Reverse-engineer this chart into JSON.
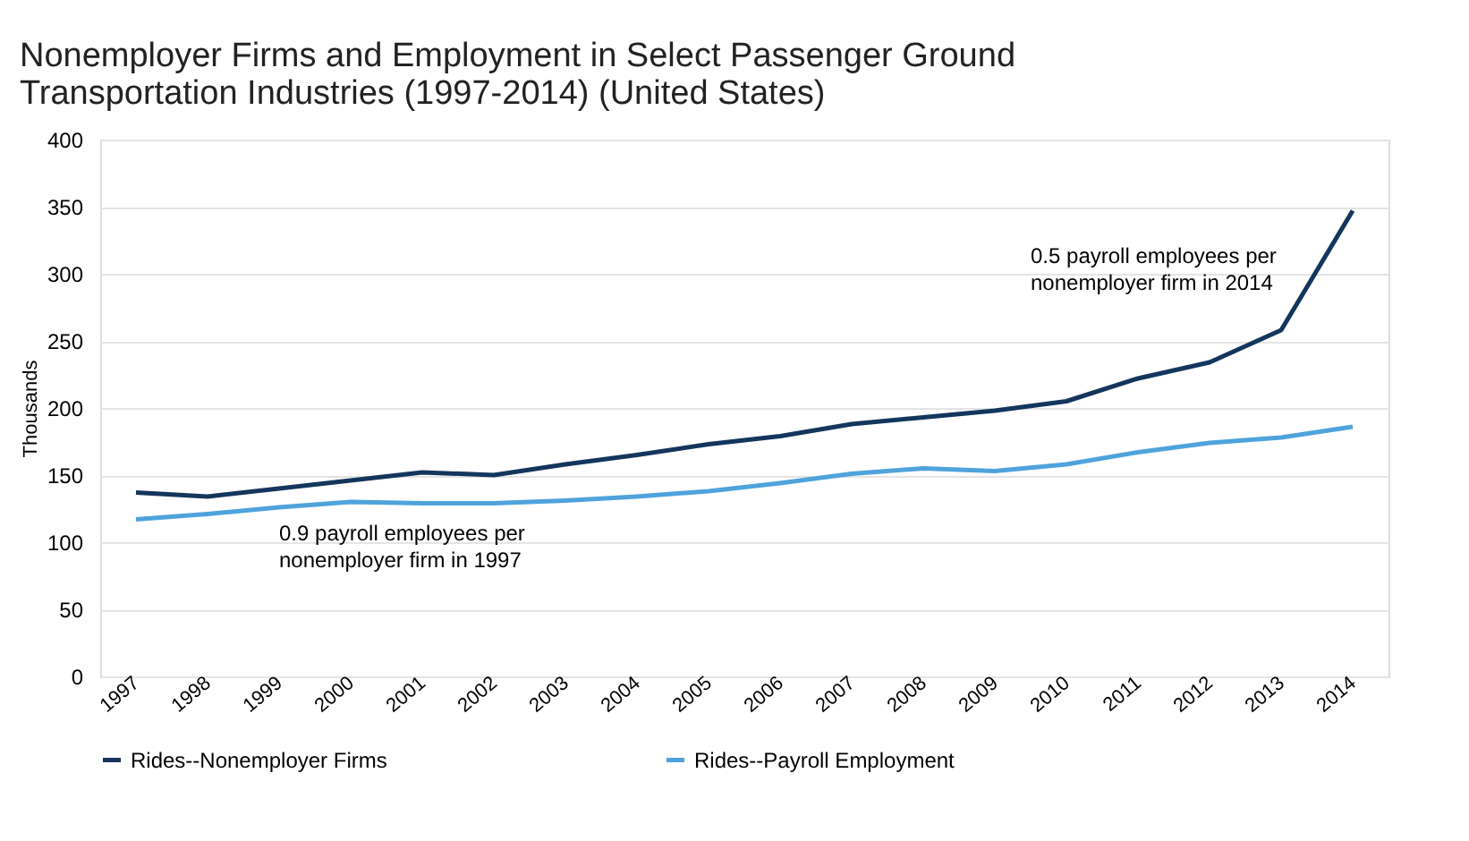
{
  "chart_data": {
    "type": "line",
    "title": "Nonemployer Firms and Employment in Select Passenger Ground Transportation Industries (1997-2014) (United States)",
    "ylabel": "Thousands",
    "categories": [
      "1997",
      "1998",
      "1999",
      "2000",
      "2001",
      "2002",
      "2003",
      "2004",
      "2005",
      "2006",
      "2007",
      "2008",
      "2009",
      "2010",
      "2011",
      "2012",
      "2013",
      "2014"
    ],
    "series": [
      {
        "name": "Rides--Nonemployer Firms",
        "color": "#14365d",
        "values": [
          137,
          134,
          140,
          146,
          152,
          150,
          158,
          165,
          173,
          179,
          188,
          193,
          198,
          205,
          222,
          234,
          258,
          347
        ]
      },
      {
        "name": "Rides--Payroll Employment",
        "color": "#4fa3dc",
        "values": [
          117,
          121,
          126,
          130,
          129,
          129,
          131,
          134,
          138,
          144,
          151,
          155,
          153,
          158,
          167,
          174,
          178,
          186
        ]
      }
    ],
    "ylim": [
      0,
      400
    ],
    "yticks": [
      0,
      50,
      100,
      150,
      200,
      250,
      300,
      350,
      400
    ],
    "grid": "y",
    "legend": "bottom",
    "marker": "none",
    "line_style": "solid",
    "annotations": [
      "0.5 payroll employees per nonemployer firm in 2014",
      "0.9 payroll employees per nonemployer firm in 1997"
    ]
  }
}
